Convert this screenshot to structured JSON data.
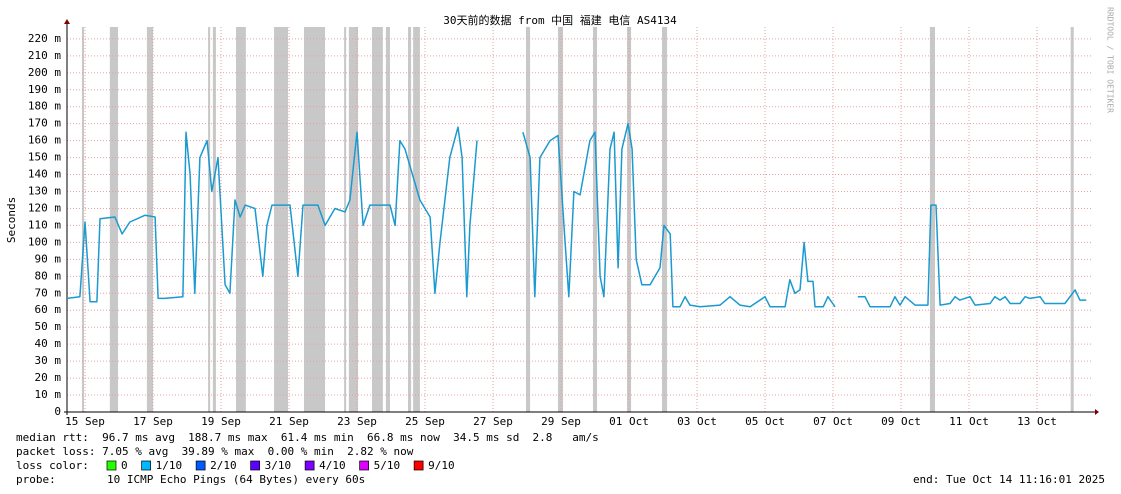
{
  "chart_data": {
    "type": "line",
    "title": "30天前的数据 from 中国 福建 电信 AS4134",
    "y_label": "Seconds",
    "watermark": "RRDTOOL / TOBI OETIKER",
    "xlim": [
      14.47,
      44.47
    ],
    "xticks": [
      {
        "value": 15,
        "label": "15 Sep"
      },
      {
        "value": 17,
        "label": "17 Sep"
      },
      {
        "value": 19,
        "label": "19 Sep"
      },
      {
        "value": 21,
        "label": "21 Sep"
      },
      {
        "value": 23,
        "label": "23 Sep"
      },
      {
        "value": 25,
        "label": "25 Sep"
      },
      {
        "value": 27,
        "label": "27 Sep"
      },
      {
        "value": 29,
        "label": "29 Sep"
      },
      {
        "value": 31,
        "label": "01 Oct"
      },
      {
        "value": 33,
        "label": "03 Oct"
      },
      {
        "value": 35,
        "label": "05 Oct"
      },
      {
        "value": 37,
        "label": "07 Oct"
      },
      {
        "value": 39,
        "label": "09 Oct"
      },
      {
        "value": 41,
        "label": "11 Oct"
      },
      {
        "value": 43,
        "label": "13 Oct"
      }
    ],
    "ylim": [
      0,
      0.227
    ],
    "yticks": [
      0,
      {
        "value": 0.01,
        "label": "10 m"
      },
      {
        "value": 0.02,
        "label": "20 m"
      },
      {
        "value": 0.03,
        "label": "30 m"
      },
      {
        "value": 0.04,
        "label": "40 m"
      },
      {
        "value": 0.05,
        "label": "50 m"
      },
      {
        "value": 0.06,
        "label": "60 m"
      },
      {
        "value": 0.07,
        "label": "70 m"
      },
      {
        "value": 0.08,
        "label": "80 m"
      },
      {
        "value": 0.09,
        "label": "90 m"
      },
      {
        "value": 0.1,
        "label": "100 m"
      },
      {
        "value": 0.11,
        "label": "110 m"
      },
      {
        "value": 0.12,
        "label": "120 m"
      },
      {
        "value": 0.13,
        "label": "130 m"
      },
      {
        "value": 0.14,
        "label": "140 m"
      },
      {
        "value": 0.15,
        "label": "150 m"
      },
      {
        "value": 0.16,
        "label": "160 m"
      },
      {
        "value": 0.17,
        "label": "170 m"
      },
      {
        "value": 0.18,
        "label": "180 m"
      },
      {
        "value": 0.19,
        "label": "190 m"
      },
      {
        "value": 0.2,
        "label": "200 m"
      },
      {
        "value": 0.21,
        "label": "210 m"
      },
      {
        "value": 0.22,
        "label": "220 m"
      }
    ],
    "grid": true,
    "loss_shading_color": "#c8c8c8",
    "loss_periods": [
      [
        14.91,
        14.97
      ],
      [
        15.73,
        15.97
      ],
      [
        16.82,
        17.0
      ],
      [
        18.62,
        18.68
      ],
      [
        18.76,
        18.85
      ],
      [
        19.44,
        19.73
      ],
      [
        20.56,
        20.97
      ],
      [
        21.44,
        22.06
      ],
      [
        22.62,
        22.68
      ],
      [
        22.76,
        23.03
      ],
      [
        23.44,
        23.76
      ],
      [
        23.85,
        23.97
      ],
      [
        24.5,
        24.59
      ],
      [
        24.65,
        24.85
      ],
      [
        27.97,
        28.09
      ],
      [
        28.91,
        29.06
      ],
      [
        29.94,
        30.06
      ],
      [
        30.94,
        31.06
      ],
      [
        31.97,
        32.12
      ],
      [
        39.85,
        40.0
      ],
      [
        43.99,
        44.08
      ]
    ],
    "x": [
      14.47,
      14.85,
      15.0,
      15.15,
      15.35,
      15.44,
      15.88,
      16.09,
      16.32,
      16.76,
      17.06,
      17.15,
      17.35,
      17.88,
      17.97,
      18.09,
      18.23,
      18.38,
      18.59,
      18.73,
      18.91,
      19.12,
      19.26,
      19.41,
      19.56,
      19.71,
      20.0,
      20.23,
      20.35,
      20.5,
      21.03,
      21.26,
      21.41,
      21.85,
      22.06,
      22.35,
      22.65,
      22.79,
      23.0,
      23.18,
      23.38,
      23.97,
      24.12,
      24.26,
      24.41,
      24.85,
      25.15,
      25.29,
      25.44,
      25.73,
      25.97,
      26.09,
      26.23,
      26.32,
      26.53,
      26.9,
      27.88,
      28.09,
      28.23,
      28.38,
      28.68,
      28.91,
      29.12,
      29.23,
      29.38,
      29.56,
      29.85,
      30.0,
      30.15,
      30.26,
      30.44,
      30.56,
      30.68,
      30.79,
      30.97,
      31.09,
      31.21,
      31.38,
      31.62,
      31.91,
      32.03,
      32.21,
      32.29,
      32.5,
      32.65,
      32.79,
      33.09,
      33.68,
      33.97,
      34.26,
      34.56,
      35.0,
      35.15,
      35.59,
      35.73,
      35.88,
      36.03,
      36.15,
      36.26,
      36.41,
      36.47,
      36.71,
      36.85,
      37.06,
      37.38,
      37.73,
      37.94,
      38.09,
      38.68,
      38.82,
      38.97,
      39.12,
      39.41,
      39.79,
      39.88,
      40.03,
      40.15,
      40.44,
      40.59,
      40.73,
      41.03,
      41.18,
      41.62,
      41.76,
      41.91,
      42.06,
      42.21,
      42.5,
      42.65,
      42.79,
      43.09,
      43.23,
      43.82,
      44.12,
      44.26,
      44.45
    ],
    "series": [
      {
        "name": "median rtt",
        "color": "#1a9ad0",
        "values": [
          0.067,
          0.068,
          0.112,
          0.065,
          0.065,
          0.114,
          0.115,
          0.105,
          0.112,
          0.116,
          0.115,
          0.067,
          0.067,
          0.068,
          0.165,
          0.14,
          0.07,
          0.15,
          0.16,
          0.13,
          0.15,
          0.075,
          0.07,
          0.125,
          0.115,
          0.122,
          0.12,
          0.08,
          0.11,
          0.122,
          0.122,
          0.08,
          0.122,
          0.122,
          0.11,
          0.12,
          0.118,
          0.125,
          0.165,
          0.11,
          0.122,
          0.122,
          0.11,
          0.16,
          0.155,
          0.125,
          0.115,
          0.07,
          0.1,
          0.15,
          0.168,
          0.15,
          0.068,
          0.11,
          0.16,
          null,
          0.165,
          0.15,
          0.068,
          0.15,
          0.16,
          0.163,
          0.1,
          0.068,
          0.13,
          0.128,
          0.16,
          0.165,
          0.08,
          0.068,
          0.155,
          0.165,
          0.085,
          0.155,
          0.17,
          0.155,
          0.09,
          0.075,
          0.075,
          0.085,
          0.11,
          0.105,
          0.062,
          0.062,
          0.068,
          0.063,
          0.062,
          0.063,
          0.068,
          0.063,
          0.062,
          0.068,
          0.062,
          0.062,
          0.078,
          0.07,
          0.072,
          0.1,
          0.077,
          0.077,
          0.062,
          0.062,
          0.068,
          0.062,
          null,
          0.068,
          0.068,
          0.062,
          0.062,
          0.068,
          0.063,
          0.068,
          0.063,
          0.063,
          0.122,
          0.122,
          0.063,
          0.064,
          0.068,
          0.066,
          0.068,
          0.063,
          0.064,
          0.068,
          0.066,
          0.068,
          0.064,
          0.064,
          0.068,
          0.067,
          0.068,
          0.064,
          0.064,
          0.072,
          0.066,
          0.066
        ]
      }
    ],
    "stats_lines": [
      "median rtt:  96.7 ms avg  188.7 ms max  61.4 ms min  66.8 ms now  34.5 ms sd  2.8   am/s",
      "packet loss: 7.05 % avg  39.89 % max  0.00 % min  2.82 % now"
    ],
    "loss_color_label": "loss color:",
    "loss_colors": [
      {
        "label": "0",
        "color": "#26ff00"
      },
      {
        "label": "1/10",
        "color": "#00b8ff"
      },
      {
        "label": "2/10",
        "color": "#0059ff"
      },
      {
        "label": "3/10",
        "color": "#5e00ff"
      },
      {
        "label": "4/10",
        "color": "#7e00ff"
      },
      {
        "label": "5/10",
        "color": "#dd00ff"
      },
      {
        "label": "9/10",
        "color": "#ff0000"
      }
    ],
    "probe_label": "probe:",
    "probe": "10 ICMP Echo Pings (64 Bytes) every 60s",
    "end": "end: Tue Oct 14 11:16:01 2025"
  }
}
